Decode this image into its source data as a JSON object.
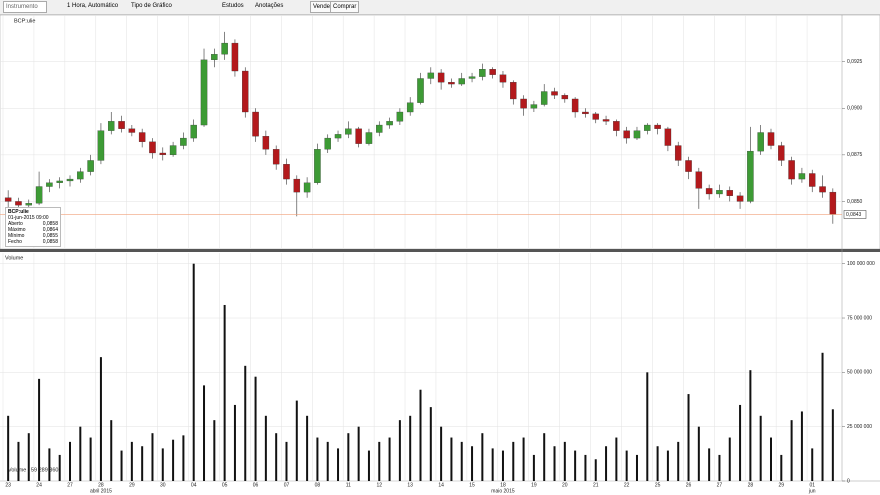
{
  "toolbar": {
    "instrument": "Instrumento",
    "interval": "1 Hora, Automático",
    "chart_type": "Tipo de Gráfico",
    "studies": "Estudos",
    "annotations": "Anotações",
    "sell": "Vender",
    "buy": "Comprar"
  },
  "info_box": {
    "title": "BCP:ulie",
    "date": "01-jun-2015 09:00",
    "rows": [
      [
        "Aberto",
        "0,0858"
      ],
      [
        "Máximo",
        "0,0864"
      ],
      [
        "Mínimo",
        "0,0855"
      ],
      [
        "Fecho",
        "0,0858"
      ]
    ]
  },
  "chart_data": [
    {
      "type": "candlestick",
      "title": "BCP:ulie",
      "up_color": "#3d9b35",
      "down_color": "#b3191c",
      "categories": [
        "23",
        null,
        null,
        "24",
        null,
        null,
        "27",
        null,
        null,
        "28",
        null,
        null,
        "29",
        null,
        null,
        "30",
        null,
        null,
        "04",
        null,
        null,
        "05",
        null,
        null,
        "06",
        null,
        null,
        "07",
        null,
        null,
        "08",
        null,
        null,
        "11",
        null,
        null,
        "12",
        null,
        null,
        "13",
        null,
        null,
        "14",
        null,
        null,
        "15",
        null,
        null,
        "18",
        null,
        null,
        "19",
        null,
        null,
        "20",
        null,
        null,
        "21",
        null,
        null,
        "22",
        null,
        null,
        "25",
        null,
        null,
        "26",
        null,
        null,
        "27",
        null,
        null,
        "28",
        null,
        null,
        "29",
        null,
        null,
        "01",
        null,
        null
      ],
      "month_categories": [
        null,
        null,
        null,
        null,
        null,
        null,
        null,
        null,
        null,
        "abril 2015",
        null,
        null,
        null,
        null,
        null,
        null,
        null,
        null,
        null,
        null,
        null,
        null,
        null,
        null,
        null,
        null,
        null,
        null,
        null,
        null,
        null,
        null,
        null,
        null,
        null,
        null,
        null,
        null,
        null,
        null,
        null,
        null,
        null,
        null,
        null,
        null,
        null,
        null,
        "maio 2015",
        null,
        null,
        null,
        null,
        null,
        null,
        null,
        null,
        null,
        null,
        null,
        null,
        null,
        null,
        null,
        null,
        null,
        null,
        null,
        null,
        null,
        null,
        null,
        null,
        null,
        null,
        null,
        null,
        null,
        "jun",
        null,
        null
      ],
      "ohlc": [
        [
          0.0852,
          0.0856,
          0.0845,
          0.085
        ],
        [
          0.085,
          0.0852,
          0.0843,
          0.0848
        ],
        [
          0.0848,
          0.0851,
          0.0846,
          0.0849
        ],
        [
          0.0849,
          0.0866,
          0.0848,
          0.0858
        ],
        [
          0.0858,
          0.0862,
          0.0855,
          0.086
        ],
        [
          0.086,
          0.0863,
          0.0857,
          0.0861
        ],
        [
          0.0861,
          0.0864,
          0.0858,
          0.0862
        ],
        [
          0.0862,
          0.0868,
          0.086,
          0.0866
        ],
        [
          0.0866,
          0.0875,
          0.0864,
          0.0872
        ],
        [
          0.0872,
          0.0892,
          0.087,
          0.0888
        ],
        [
          0.0888,
          0.0898,
          0.0886,
          0.0893
        ],
        [
          0.0893,
          0.0896,
          0.0887,
          0.0889
        ],
        [
          0.0889,
          0.0891,
          0.0885,
          0.0887
        ],
        [
          0.0887,
          0.0889,
          0.0879,
          0.0882
        ],
        [
          0.0882,
          0.0884,
          0.0873,
          0.0876
        ],
        [
          0.0876,
          0.0879,
          0.0872,
          0.0875
        ],
        [
          0.0875,
          0.0882,
          0.0874,
          0.088
        ],
        [
          0.088,
          0.0887,
          0.0878,
          0.0884
        ],
        [
          0.0884,
          0.0894,
          0.0882,
          0.0891
        ],
        [
          0.0891,
          0.0932,
          0.089,
          0.0926
        ],
        [
          0.0926,
          0.0932,
          0.0922,
          0.0929
        ],
        [
          0.0929,
          0.0941,
          0.0926,
          0.0935
        ],
        [
          0.0935,
          0.0937,
          0.0917,
          0.092
        ],
        [
          0.092,
          0.0922,
          0.0895,
          0.0898
        ],
        [
          0.0898,
          0.09,
          0.0882,
          0.0885
        ],
        [
          0.0885,
          0.0888,
          0.0875,
          0.0878
        ],
        [
          0.0878,
          0.088,
          0.0867,
          0.087
        ],
        [
          0.087,
          0.0873,
          0.0859,
          0.0862
        ],
        [
          0.0862,
          0.0864,
          0.0842,
          0.0855
        ],
        [
          0.0855,
          0.0863,
          0.0852,
          0.086
        ],
        [
          0.086,
          0.0881,
          0.0859,
          0.0878
        ],
        [
          0.0878,
          0.0886,
          0.0876,
          0.0884
        ],
        [
          0.0884,
          0.0888,
          0.0882,
          0.0886
        ],
        [
          0.0886,
          0.0893,
          0.0884,
          0.0889
        ],
        [
          0.0889,
          0.089,
          0.0879,
          0.0881
        ],
        [
          0.0881,
          0.0889,
          0.088,
          0.0887
        ],
        [
          0.0887,
          0.0893,
          0.0885,
          0.0891
        ],
        [
          0.0891,
          0.0895,
          0.0889,
          0.0893
        ],
        [
          0.0893,
          0.09,
          0.0891,
          0.0898
        ],
        [
          0.0898,
          0.0906,
          0.0896,
          0.0903
        ],
        [
          0.0903,
          0.0919,
          0.0902,
          0.0916
        ],
        [
          0.0916,
          0.0922,
          0.0913,
          0.0919
        ],
        [
          0.0919,
          0.0921,
          0.091,
          0.0914
        ],
        [
          0.0914,
          0.0916,
          0.0911,
          0.0913
        ],
        [
          0.0913,
          0.0919,
          0.0912,
          0.0916
        ],
        [
          0.0916,
          0.0919,
          0.0914,
          0.0917
        ],
        [
          0.0917,
          0.0924,
          0.0915,
          0.0921
        ],
        [
          0.0921,
          0.0922,
          0.0916,
          0.0918
        ],
        [
          0.0918,
          0.092,
          0.0911,
          0.0914
        ],
        [
          0.0914,
          0.0915,
          0.0902,
          0.0905
        ],
        [
          0.0905,
          0.0907,
          0.0896,
          0.09
        ],
        [
          0.09,
          0.0904,
          0.0898,
          0.0902
        ],
        [
          0.0902,
          0.0913,
          0.0901,
          0.0909
        ],
        [
          0.0909,
          0.0911,
          0.0905,
          0.0907
        ],
        [
          0.0907,
          0.0908,
          0.0903,
          0.0905
        ],
        [
          0.0905,
          0.0906,
          0.0895,
          0.0898
        ],
        [
          0.0898,
          0.09,
          0.0895,
          0.0897
        ],
        [
          0.0897,
          0.0898,
          0.0892,
          0.0894
        ],
        [
          0.0894,
          0.0896,
          0.0891,
          0.0893
        ],
        [
          0.0893,
          0.0894,
          0.0885,
          0.0888
        ],
        [
          0.0888,
          0.089,
          0.0881,
          0.0884
        ],
        [
          0.0884,
          0.089,
          0.0883,
          0.0888
        ],
        [
          0.0888,
          0.0892,
          0.0886,
          0.0891
        ],
        [
          0.0891,
          0.0892,
          0.0886,
          0.0889
        ],
        [
          0.0889,
          0.089,
          0.0877,
          0.088
        ],
        [
          0.088,
          0.0882,
          0.0869,
          0.0872
        ],
        [
          0.0872,
          0.0874,
          0.0862,
          0.0866
        ],
        [
          0.0866,
          0.0868,
          0.0846,
          0.0857
        ],
        [
          0.0857,
          0.0859,
          0.0851,
          0.0854
        ],
        [
          0.0854,
          0.0859,
          0.0852,
          0.0856
        ],
        [
          0.0856,
          0.0858,
          0.085,
          0.0853
        ],
        [
          0.0853,
          0.0855,
          0.0846,
          0.085
        ],
        [
          0.085,
          0.089,
          0.0849,
          0.0877
        ],
        [
          0.0877,
          0.0891,
          0.0875,
          0.0887
        ],
        [
          0.0887,
          0.0889,
          0.0878,
          0.088
        ],
        [
          0.088,
          0.0882,
          0.0869,
          0.0872
        ],
        [
          0.0872,
          0.0874,
          0.0859,
          0.0862
        ],
        [
          0.0862,
          0.0868,
          0.086,
          0.0865
        ],
        [
          0.0865,
          0.0867,
          0.0855,
          0.0858
        ],
        [
          0.0858,
          0.0864,
          0.0852,
          0.0855
        ],
        [
          0.0855,
          0.0857,
          0.0838,
          0.0843
        ]
      ],
      "ylim": [
        0.0825,
        0.0949
      ],
      "yticks": [
        {
          "value": 0.085,
          "label": "0,0850"
        },
        {
          "value": 0.0875,
          "label": "0,0875"
        },
        {
          "value": 0.09,
          "label": "0,0900"
        },
        {
          "value": 0.0925,
          "label": "0,0925"
        }
      ],
      "last_price": {
        "value": 0.0843,
        "label": "0,0843"
      },
      "last_price_color": "#f2a27a",
      "grid": true
    },
    {
      "type": "bar",
      "title": "Volume",
      "legend_label": "Volume : 59 289 360",
      "color": "#111111",
      "values": [
        30000000,
        18000000,
        22000000,
        47000000,
        15000000,
        12000000,
        18000000,
        25000000,
        20000000,
        57000000,
        28000000,
        14000000,
        18000000,
        16000000,
        22000000,
        15000000,
        19000000,
        21000000,
        100000000,
        44000000,
        28000000,
        81000000,
        35000000,
        53000000,
        48000000,
        30000000,
        22000000,
        18000000,
        37000000,
        30000000,
        20000000,
        18000000,
        15000000,
        22000000,
        25000000,
        14000000,
        18000000,
        20000000,
        28000000,
        30000000,
        42000000,
        34000000,
        25000000,
        20000000,
        18000000,
        16000000,
        22000000,
        15000000,
        14000000,
        18000000,
        20000000,
        12000000,
        22000000,
        16000000,
        18000000,
        14000000,
        12000000,
        10000000,
        16000000,
        20000000,
        14000000,
        12000000,
        50000000,
        16000000,
        14000000,
        18000000,
        40000000,
        25000000,
        15000000,
        12000000,
        20000000,
        35000000,
        51000000,
        30000000,
        20000000,
        12000000,
        28000000,
        32000000,
        15000000,
        59000000,
        33000000
      ],
      "ylim": [
        0,
        104000000
      ],
      "yticks": [
        0,
        {
          "value": 25000000,
          "label": "25 000 000"
        },
        {
          "value": 50000000,
          "label": "50 000 000"
        },
        {
          "value": 75000000,
          "label": "75 000 000"
        },
        {
          "value": 100000000,
          "label": "100 000 000"
        }
      ],
      "grid": true
    }
  ]
}
